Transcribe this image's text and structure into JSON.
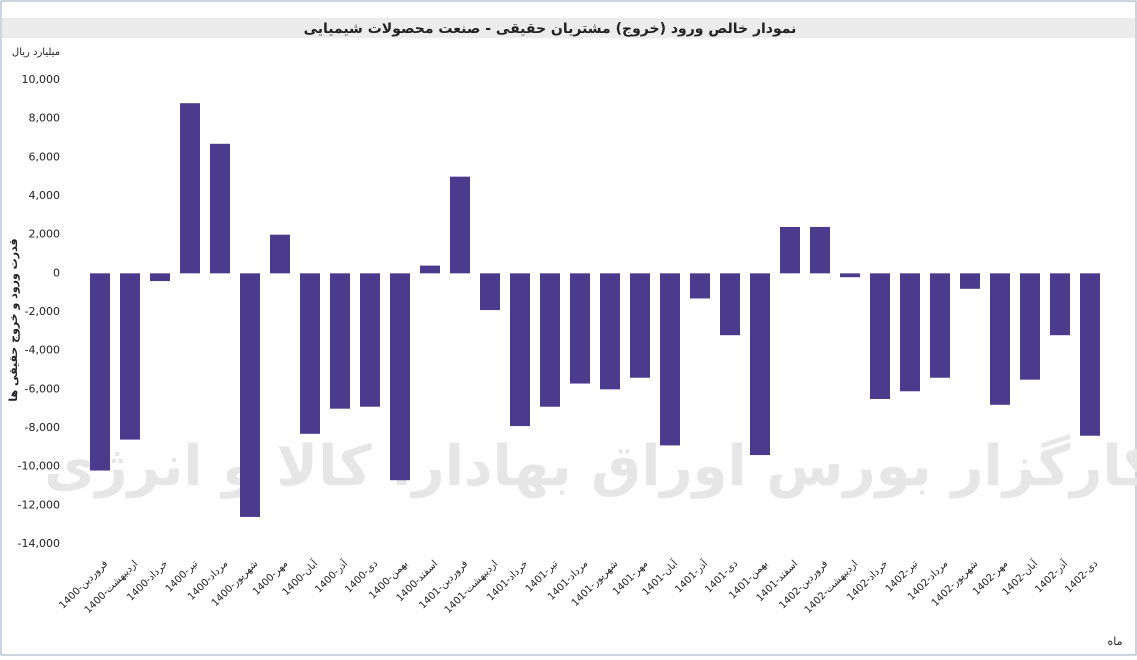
{
  "chart_data": {
    "type": "bar",
    "title": "نمودار خالص ورود (خروج) مشتریان حقیقی - صنعت محصولات شیمیایی",
    "unit_label": "میلیارد ریال",
    "y_label": "قدرت ورود و خروج حقیقی ها",
    "x_label": "ماه",
    "watermark": "کارگزار بورس اوراق بهادار، کالا و انرژی",
    "categories": [
      "1400-فروردین",
      "1400-اردیبهشت",
      "1400-خرداد",
      "1400-تیر",
      "1400-مرداد",
      "1400-شهریور",
      "1400-مهر",
      "1400-آبان",
      "1400-آذر",
      "1400-دی",
      "1400-بهمن",
      "1400-اسفند",
      "1401-فروردین",
      "1401-اردیبهشت",
      "1401-خرداد",
      "1401-تیر",
      "1401-مرداد",
      "1401-شهریور",
      "1401-مهر",
      "1401-آبان",
      "1401-آذر",
      "1401-دی",
      "1401-بهمن",
      "1401-اسفند",
      "1402-فروردین",
      "1402-اردیبهشت",
      "1402-خرداد",
      "1402-تیر",
      "1402-مرداد",
      "1402-شهریور",
      "1402-مهر",
      "1402-آبان",
      "1402-آذر",
      "1402-دی"
    ],
    "values": [
      -10200,
      -8600,
      -400,
      8800,
      6700,
      -12600,
      2000,
      -8300,
      -7000,
      -6900,
      -10700,
      400,
      5000,
      -1900,
      -7900,
      -6900,
      -5700,
      -6000,
      -5400,
      -8900,
      -1300,
      -3200,
      -9400,
      2400,
      2400,
      -200,
      -6500,
      -6100,
      -5400,
      -800,
      -6800,
      -5500,
      -3200,
      -8400
    ],
    "color": "#4a3b8c",
    "ylim": [
      -14000,
      10000
    ],
    "yticks": [
      {
        "value": -14000,
        "label": "-14,000"
      },
      {
        "value": -12000,
        "label": "-12,000"
      },
      {
        "value": -10000,
        "label": "-10,000"
      },
      {
        "value": -8000,
        "label": "-8,000"
      },
      {
        "value": -6000,
        "label": "-6,000"
      },
      {
        "value": -4000,
        "label": "-4,000"
      },
      {
        "value": -2000,
        "label": "-2,000"
      },
      0,
      {
        "value": 2000,
        "label": "2,000"
      },
      {
        "value": 4000,
        "label": "4,000"
      },
      {
        "value": 6000,
        "label": "6,000"
      },
      {
        "value": 8000,
        "label": "8,000"
      },
      {
        "value": 10000,
        "label": "10,000"
      }
    ],
    "grid": false
  }
}
